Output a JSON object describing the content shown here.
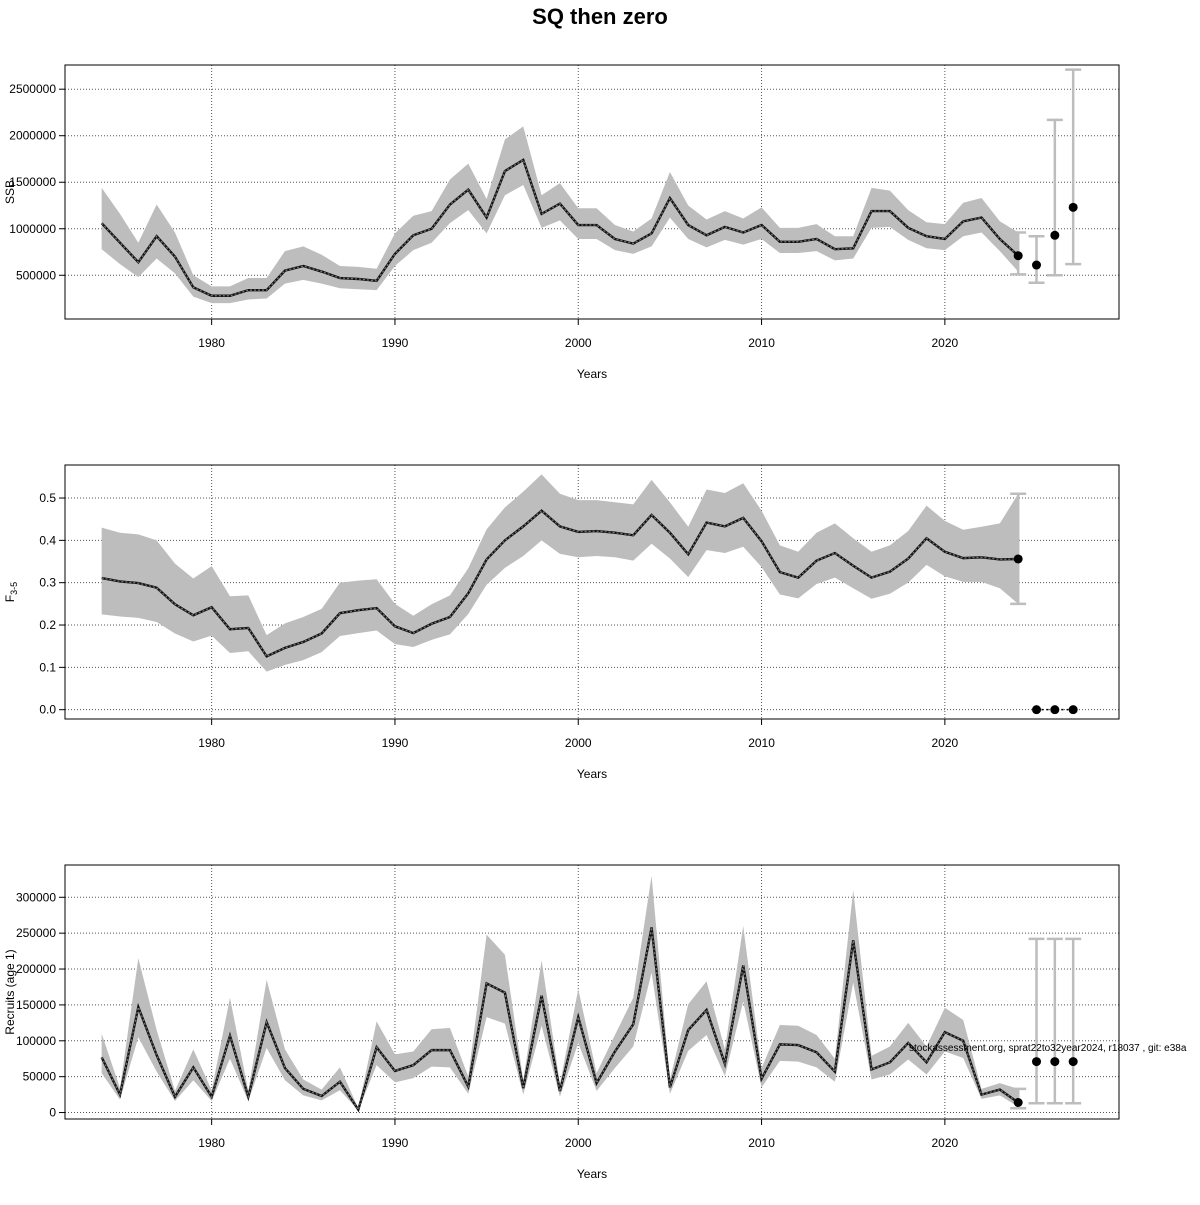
{
  "title": "SQ then zero",
  "footnote": "stockassessment.org, sprat22to32year2024, r18037 , git: e38a",
  "colors": {
    "band": "#bdbdbd",
    "line": "#000000",
    "grid": "#555555",
    "whisker": "#bdbdbd"
  },
  "chart_data": [
    {
      "type": "line",
      "ylabel": "SSB",
      "xlabel": "Years",
      "xlim": [
        1972,
        2029.5
      ],
      "ylim": [
        30000,
        2760000
      ],
      "xticks": [
        1980,
        1990,
        2000,
        2010,
        2020
      ],
      "yticks": [
        500000,
        1000000,
        1500000,
        2000000,
        2500000
      ],
      "ytick_labels": [
        "500000",
        "1000000",
        "1500000",
        "2000000",
        "2500000"
      ],
      "x": [
        1974,
        1975,
        1976,
        1977,
        1978,
        1979,
        1980,
        1981,
        1982,
        1983,
        1984,
        1985,
        1986,
        1987,
        1988,
        1989,
        1990,
        1991,
        1992,
        1993,
        1994,
        1995,
        1996,
        1997,
        1998,
        1999,
        2000,
        2001,
        2002,
        2003,
        2004,
        2005,
        2006,
        2007,
        2008,
        2009,
        2010,
        2011,
        2012,
        2013,
        2014,
        2015,
        2016,
        2017,
        2018,
        2019,
        2020,
        2021,
        2022,
        2023,
        2024
      ],
      "estimate": [
        1060000,
        850000,
        640000,
        920000,
        700000,
        370000,
        280000,
        280000,
        340000,
        340000,
        550000,
        600000,
        540000,
        470000,
        460000,
        440000,
        730000,
        930000,
        1000000,
        1260000,
        1420000,
        1120000,
        1620000,
        1740000,
        1160000,
        1270000,
        1040000,
        1040000,
        890000,
        840000,
        950000,
        1330000,
        1040000,
        930000,
        1020000,
        960000,
        1040000,
        860000,
        860000,
        890000,
        780000,
        790000,
        1190000,
        1190000,
        1010000,
        920000,
        890000,
        1080000,
        1120000,
        890000,
        710000
      ],
      "lower": [
        780000,
        620000,
        480000,
        680000,
        520000,
        270000,
        200000,
        200000,
        240000,
        250000,
        410000,
        450000,
        410000,
        360000,
        350000,
        340000,
        600000,
        770000,
        850000,
        1060000,
        1200000,
        950000,
        1360000,
        1470000,
        1010000,
        1090000,
        890000,
        890000,
        770000,
        730000,
        810000,
        1120000,
        890000,
        800000,
        880000,
        830000,
        890000,
        740000,
        740000,
        760000,
        660000,
        680000,
        1010000,
        1020000,
        880000,
        790000,
        770000,
        920000,
        960000,
        760000,
        540000
      ],
      "upper": [
        1440000,
        1160000,
        850000,
        1260000,
        960000,
        500000,
        380000,
        380000,
        470000,
        470000,
        760000,
        810000,
        720000,
        600000,
        590000,
        570000,
        950000,
        1140000,
        1190000,
        1530000,
        1700000,
        1320000,
        1960000,
        2100000,
        1360000,
        1490000,
        1220000,
        1220000,
        1040000,
        970000,
        1110000,
        1610000,
        1250000,
        1100000,
        1190000,
        1110000,
        1230000,
        1010000,
        1010000,
        1050000,
        920000,
        920000,
        1440000,
        1410000,
        1200000,
        1070000,
        1050000,
        1280000,
        1330000,
        1080000,
        960000
      ],
      "forecast": {
        "x": [
          2024,
          2025,
          2026,
          2027
        ],
        "median": [
          710000,
          610000,
          930000,
          1230000
        ],
        "lower": [
          510000,
          420000,
          500000,
          620000
        ],
        "upper": [
          960000,
          920000,
          2170000,
          2710000
        ]
      }
    },
    {
      "type": "line",
      "ylabel": "F3-5",
      "ylabel_main": "F",
      "ylabel_sub": "3-5",
      "xlabel": "Years",
      "xlim": [
        1972,
        2029.5
      ],
      "ylim": [
        -0.022,
        0.578
      ],
      "xticks": [
        1980,
        1990,
        2000,
        2010,
        2020
      ],
      "yticks": [
        0.0,
        0.1,
        0.2,
        0.3,
        0.4,
        0.5
      ],
      "ytick_labels": [
        "0.0",
        "0.1",
        "0.2",
        "0.3",
        "0.4",
        "0.5"
      ],
      "x": [
        1974,
        1975,
        1976,
        1977,
        1978,
        1979,
        1980,
        1981,
        1982,
        1983,
        1984,
        1985,
        1986,
        1987,
        1988,
        1989,
        1990,
        1991,
        1992,
        1993,
        1994,
        1995,
        1996,
        1997,
        1998,
        1999,
        2000,
        2001,
        2002,
        2003,
        2004,
        2005,
        2006,
        2007,
        2008,
        2009,
        2010,
        2011,
        2012,
        2013,
        2014,
        2015,
        2016,
        2017,
        2018,
        2019,
        2020,
        2021,
        2022,
        2023,
        2024
      ],
      "estimate": [
        0.311,
        0.303,
        0.299,
        0.288,
        0.249,
        0.223,
        0.242,
        0.19,
        0.193,
        0.126,
        0.146,
        0.16,
        0.18,
        0.228,
        0.235,
        0.24,
        0.197,
        0.181,
        0.203,
        0.219,
        0.275,
        0.355,
        0.4,
        0.433,
        0.47,
        0.433,
        0.42,
        0.422,
        0.418,
        0.412,
        0.46,
        0.418,
        0.367,
        0.442,
        0.433,
        0.453,
        0.398,
        0.325,
        0.312,
        0.352,
        0.37,
        0.34,
        0.312,
        0.326,
        0.357,
        0.405,
        0.373,
        0.358,
        0.36,
        0.355,
        0.356
      ],
      "lower": [
        0.225,
        0.22,
        0.217,
        0.207,
        0.18,
        0.161,
        0.175,
        0.134,
        0.138,
        0.09,
        0.106,
        0.117,
        0.136,
        0.174,
        0.181,
        0.187,
        0.155,
        0.148,
        0.165,
        0.178,
        0.226,
        0.295,
        0.335,
        0.363,
        0.4,
        0.368,
        0.36,
        0.363,
        0.36,
        0.352,
        0.392,
        0.357,
        0.313,
        0.377,
        0.37,
        0.385,
        0.337,
        0.272,
        0.263,
        0.297,
        0.312,
        0.287,
        0.262,
        0.274,
        0.3,
        0.342,
        0.315,
        0.302,
        0.302,
        0.287,
        0.25
      ],
      "upper": [
        0.43,
        0.418,
        0.414,
        0.4,
        0.345,
        0.31,
        0.339,
        0.268,
        0.27,
        0.176,
        0.204,
        0.219,
        0.238,
        0.3,
        0.305,
        0.308,
        0.25,
        0.222,
        0.249,
        0.27,
        0.334,
        0.426,
        0.478,
        0.515,
        0.556,
        0.51,
        0.495,
        0.495,
        0.49,
        0.485,
        0.543,
        0.49,
        0.432,
        0.52,
        0.512,
        0.535,
        0.47,
        0.388,
        0.373,
        0.418,
        0.44,
        0.405,
        0.373,
        0.388,
        0.422,
        0.482,
        0.446,
        0.425,
        0.432,
        0.44,
        0.51
      ],
      "forecast": {
        "x": [
          2024,
          2025,
          2026,
          2027
        ],
        "median": [
          0.356,
          0.0,
          0.0,
          0.0
        ],
        "lower": [
          0.25,
          null,
          null,
          null
        ],
        "upper": [
          0.51,
          null,
          null,
          null
        ]
      }
    },
    {
      "type": "line",
      "ylabel": "Recruits (age 1)",
      "xlabel": "Years",
      "xlim": [
        1972,
        2029.5
      ],
      "ylim": [
        -9000,
        345000
      ],
      "xticks": [
        1980,
        1990,
        2000,
        2010,
        2020
      ],
      "yticks": [
        0,
        50000,
        100000,
        150000,
        200000,
        250000,
        300000
      ],
      "ytick_labels": [
        "0",
        "50000",
        "100000",
        "150000",
        "200000",
        "250000",
        "300000"
      ],
      "x": [
        1974,
        1975,
        1976,
        1977,
        1978,
        1979,
        1980,
        1981,
        1982,
        1983,
        1984,
        1985,
        1986,
        1987,
        1988,
        1989,
        1990,
        1991,
        1992,
        1993,
        1994,
        1995,
        1996,
        1997,
        1998,
        1999,
        2000,
        2001,
        2002,
        2003,
        2004,
        2005,
        2006,
        2007,
        2008,
        2009,
        2010,
        2011,
        2012,
        2013,
        2014,
        2015,
        2016,
        2017,
        2018,
        2019,
        2020,
        2021,
        2022,
        2023,
        2024
      ],
      "estimate": [
        77000,
        25000,
        147000,
        80000,
        22000,
        63000,
        22000,
        107000,
        22000,
        126000,
        62000,
        33000,
        23000,
        43000,
        4000,
        91000,
        58000,
        66000,
        87000,
        87000,
        36000,
        180000,
        167000,
        34000,
        163000,
        30000,
        133000,
        41000,
        85000,
        123000,
        258000,
        35000,
        115000,
        143000,
        68000,
        205000,
        47000,
        95000,
        94000,
        84000,
        57000,
        240000,
        60000,
        70000,
        97000,
        70000,
        112000,
        100000,
        25000,
        32000,
        14000
      ],
      "lower": [
        55000,
        18000,
        105000,
        57000,
        16000,
        45000,
        16000,
        75000,
        16000,
        90000,
        45000,
        24000,
        17000,
        31000,
        3000,
        66000,
        42000,
        48000,
        64000,
        63000,
        26000,
        133000,
        124000,
        25000,
        121000,
        22000,
        97000,
        30000,
        62000,
        92000,
        195000,
        26000,
        86000,
        108000,
        51000,
        155000,
        35000,
        72000,
        71000,
        63000,
        43000,
        181000,
        46000,
        53000,
        74000,
        53000,
        85000,
        76000,
        19000,
        24000,
        8000
      ],
      "upper": [
        110000,
        34000,
        215000,
        115000,
        30000,
        88000,
        31000,
        160000,
        30000,
        185000,
        88000,
        46000,
        32000,
        63000,
        6000,
        127000,
        81000,
        85000,
        116000,
        118000,
        50000,
        248000,
        220000,
        45000,
        212000,
        40000,
        172000,
        55000,
        108000,
        160000,
        330000,
        46000,
        151000,
        183000,
        88000,
        260000,
        62000,
        122000,
        121000,
        108000,
        75000,
        310000,
        79000,
        92000,
        125000,
        92000,
        146000,
        129000,
        33000,
        41000,
        33000
      ],
      "forecast": {
        "x": [
          2024,
          2025,
          2026,
          2027
        ],
        "median": [
          14000,
          71000,
          71000,
          71000
        ],
        "lower": [
          6000,
          13000,
          13000,
          13000
        ],
        "upper": [
          33000,
          242000,
          242000,
          242000
        ]
      }
    }
  ]
}
